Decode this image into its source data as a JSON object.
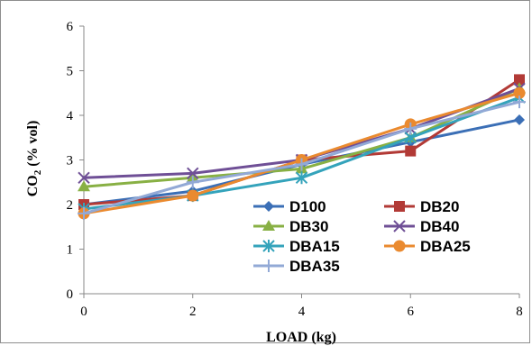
{
  "chart_data": {
    "type": "line",
    "x": [
      0,
      2,
      4,
      6,
      8
    ],
    "xlabel": "LOAD (kg)",
    "ylabel_main": "CO",
    "ylabel_sub": "2",
    "ylabel_tail": " (% vol)",
    "xlim": [
      0,
      8
    ],
    "ylim": [
      0,
      6
    ],
    "xticks": [
      0,
      2,
      4,
      6,
      8
    ],
    "yticks": [
      0,
      1,
      2,
      3,
      4,
      5,
      6
    ],
    "grid": false,
    "legend_position": "lower-right inside",
    "series": [
      {
        "name": "D100",
        "color": "#3b6fb6",
        "marker": "diamond",
        "values": [
          2.0,
          2.3,
          2.9,
          3.4,
          3.9
        ]
      },
      {
        "name": "DB20",
        "color": "#b23a36",
        "marker": "square",
        "values": [
          2.0,
          2.2,
          3.0,
          3.2,
          4.8
        ]
      },
      {
        "name": "DB30",
        "color": "#88b044",
        "marker": "triangle",
        "values": [
          2.4,
          2.6,
          2.8,
          3.5,
          4.6
        ]
      },
      {
        "name": "DB40",
        "color": "#6f4f96",
        "marker": "x",
        "values": [
          2.6,
          2.7,
          3.0,
          3.7,
          4.6
        ]
      },
      {
        "name": "DBA15",
        "color": "#34a3bb",
        "marker": "star",
        "values": [
          1.9,
          2.2,
          2.6,
          3.5,
          4.4
        ]
      },
      {
        "name": "DBA25",
        "color": "#ea8a2f",
        "marker": "circle",
        "values": [
          1.8,
          2.2,
          3.0,
          3.8,
          4.5
        ]
      },
      {
        "name": "DBA35",
        "color": "#92a9d6",
        "marker": "plus",
        "values": [
          1.8,
          2.5,
          2.9,
          3.7,
          4.3
        ]
      }
    ]
  }
}
